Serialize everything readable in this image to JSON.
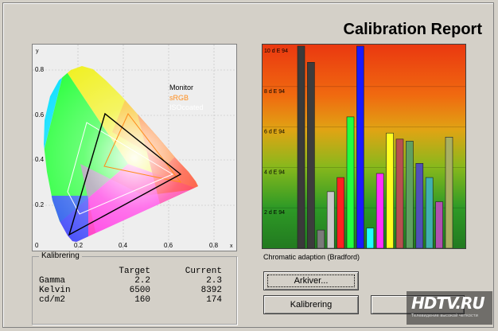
{
  "title": "Calibration Report",
  "cie": {
    "axis_y": "y",
    "axis_x": "x",
    "y_ticks": [
      "0.8",
      "0.6",
      "0.4",
      "0.2"
    ],
    "x_ticks": [
      "0",
      "0.2",
      "0.4",
      "0.6",
      "0.8"
    ],
    "legend": [
      {
        "label": "Monitor",
        "color": "#000000"
      },
      {
        "label": "sRGB",
        "color": "#ff8c1a"
      },
      {
        "label": "ISOcoated",
        "color": "#ffffff"
      }
    ]
  },
  "bar_chart_caption": "Chromatic adaption (Bradford)",
  "chart_data": {
    "type": "bar",
    "ylabel": "d E 94",
    "y_ticks": [
      "10 d E 94",
      "8 d E 94",
      "6 d E 94",
      "4 d E 94",
      "2 d E 94"
    ],
    "ylim": [
      0,
      10
    ],
    "series": [
      {
        "color": "#3a3a3a",
        "value": 10.0
      },
      {
        "color": "#3c3c3c",
        "value": 9.2
      },
      {
        "color": "#7a7a7a",
        "value": 0.9
      },
      {
        "color": "#c8c8c8",
        "value": 2.8
      },
      {
        "color": "#ff2020",
        "value": 3.5
      },
      {
        "color": "#20ff40",
        "value": 6.5
      },
      {
        "color": "#1a1aff",
        "value": 10.0
      },
      {
        "color": "#20ffff",
        "value": 1.0
      },
      {
        "color": "#ff30ff",
        "value": 3.7
      },
      {
        "color": "#ffff20",
        "value": 5.7
      },
      {
        "color": "#b85050",
        "value": 5.4
      },
      {
        "color": "#60a060",
        "value": 5.3
      },
      {
        "color": "#5050b8",
        "value": 4.2
      },
      {
        "color": "#40b0b0",
        "value": 3.5
      },
      {
        "color": "#b050b0",
        "value": 2.3
      },
      {
        "color": "#a8b060",
        "value": 5.5
      }
    ]
  },
  "kalibrering": {
    "group_label": "Kalibrering",
    "headers": [
      "",
      "Target",
      "Current"
    ],
    "rows": [
      {
        "label": "Gamma",
        "target": "2.2",
        "current": "2.3"
      },
      {
        "label": "Kelvin",
        "target": "6500",
        "current": "8392"
      },
      {
        "label": "cd/m2",
        "target": "160",
        "current": "174"
      }
    ]
  },
  "buttons": {
    "arkiver": "Arkiver...",
    "kalibrering": "Kalibrering"
  },
  "watermark": {
    "text": "HDTV.RU",
    "subtext": "Телевидение высокой четкости"
  }
}
